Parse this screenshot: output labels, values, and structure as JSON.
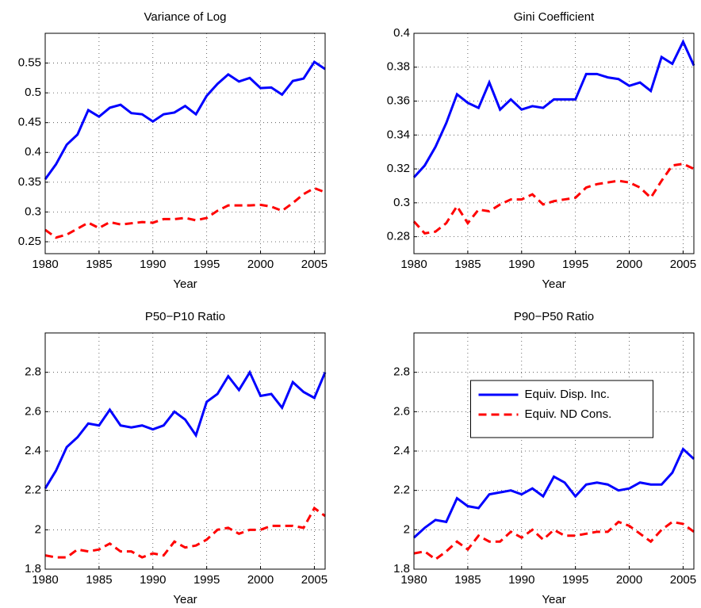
{
  "chart_data": [
    {
      "type": "line",
      "title": "Variance of Log",
      "xlabel": "Year",
      "x": [
        1980,
        1981,
        1982,
        1983,
        1984,
        1985,
        1986,
        1987,
        1988,
        1989,
        1990,
        1991,
        1992,
        1993,
        1994,
        1995,
        1996,
        1997,
        1998,
        1999,
        2000,
        2001,
        2002,
        2003,
        2004,
        2005,
        2006
      ],
      "series": [
        {
          "color": "#0000ff",
          "dash": false,
          "values": [
            0.355,
            0.38,
            0.413,
            0.43,
            0.471,
            0.46,
            0.475,
            0.48,
            0.466,
            0.464,
            0.452,
            0.464,
            0.467,
            0.478,
            0.464,
            0.495,
            0.515,
            0.531,
            0.519,
            0.525,
            0.508,
            0.509,
            0.497,
            0.52,
            0.524,
            0.552,
            0.54
          ]
        },
        {
          "color": "#ff0000",
          "dash": true,
          "values": [
            0.27,
            0.257,
            0.262,
            0.272,
            0.282,
            0.273,
            0.283,
            0.279,
            0.281,
            0.283,
            0.282,
            0.288,
            0.288,
            0.29,
            0.286,
            0.29,
            0.302,
            0.311,
            0.311,
            0.311,
            0.312,
            0.309,
            0.302,
            0.315,
            0.33,
            0.34,
            0.333
          ]
        }
      ],
      "xlim": [
        1980,
        2006
      ],
      "ylim": [
        0.23,
        0.6
      ],
      "xticks": [
        1980,
        1985,
        1990,
        1995,
        2000,
        2005
      ],
      "yticks": [
        0.25,
        0.3,
        0.35,
        0.4,
        0.45,
        0.5,
        0.55
      ],
      "grid": true
    },
    {
      "type": "line",
      "title": "Gini Coefficient",
      "xlabel": "Year",
      "x": [
        1980,
        1981,
        1982,
        1983,
        1984,
        1985,
        1986,
        1987,
        1988,
        1989,
        1990,
        1991,
        1992,
        1993,
        1994,
        1995,
        1996,
        1997,
        1998,
        1999,
        2000,
        2001,
        2002,
        2003,
        2004,
        2005,
        2006
      ],
      "series": [
        {
          "color": "#0000ff",
          "dash": false,
          "values": [
            0.315,
            0.322,
            0.333,
            0.347,
            0.364,
            0.359,
            0.356,
            0.371,
            0.355,
            0.361,
            0.355,
            0.357,
            0.356,
            0.361,
            0.361,
            0.361,
            0.376,
            0.376,
            0.374,
            0.373,
            0.369,
            0.371,
            0.366,
            0.386,
            0.382,
            0.395,
            0.381
          ]
        },
        {
          "color": "#ff0000",
          "dash": true,
          "values": [
            0.289,
            0.282,
            0.283,
            0.288,
            0.298,
            0.288,
            0.296,
            0.295,
            0.299,
            0.302,
            0.302,
            0.305,
            0.299,
            0.301,
            0.302,
            0.303,
            0.309,
            0.311,
            0.312,
            0.313,
            0.312,
            0.309,
            0.303,
            0.313,
            0.322,
            0.323,
            0.32
          ]
        }
      ],
      "xlim": [
        1980,
        2006
      ],
      "ylim": [
        0.27,
        0.4
      ],
      "xticks": [
        1980,
        1985,
        1990,
        1995,
        2000,
        2005
      ],
      "yticks": [
        0.28,
        0.3,
        0.32,
        0.34,
        0.36,
        0.38,
        0.4
      ],
      "grid": true
    },
    {
      "type": "line",
      "title": "P50−P10 Ratio",
      "xlabel": "Year",
      "x": [
        1980,
        1981,
        1982,
        1983,
        1984,
        1985,
        1986,
        1987,
        1988,
        1989,
        1990,
        1991,
        1992,
        1993,
        1994,
        1995,
        1996,
        1997,
        1998,
        1999,
        2000,
        2001,
        2002,
        2003,
        2004,
        2005,
        2006
      ],
      "series": [
        {
          "color": "#0000ff",
          "dash": false,
          "values": [
            2.21,
            2.3,
            2.42,
            2.47,
            2.54,
            2.53,
            2.61,
            2.53,
            2.52,
            2.53,
            2.51,
            2.53,
            2.6,
            2.56,
            2.48,
            2.65,
            2.69,
            2.78,
            2.71,
            2.8,
            2.68,
            2.69,
            2.62,
            2.75,
            2.7,
            2.67,
            2.8
          ]
        },
        {
          "color": "#ff0000",
          "dash": true,
          "values": [
            1.87,
            1.86,
            1.86,
            1.9,
            1.89,
            1.9,
            1.93,
            1.89,
            1.89,
            1.86,
            1.88,
            1.87,
            1.94,
            1.91,
            1.92,
            1.95,
            2.0,
            2.01,
            1.98,
            2.0,
            2.0,
            2.02,
            2.02,
            2.02,
            2.01,
            2.11,
            2.07
          ]
        }
      ],
      "xlim": [
        1980,
        2006
      ],
      "ylim": [
        1.8,
        3.0
      ],
      "xticks": [
        1980,
        1985,
        1990,
        1995,
        2000,
        2005
      ],
      "yticks": [
        1.8,
        2,
        2.2,
        2.4,
        2.6,
        2.8
      ],
      "grid": true
    },
    {
      "type": "line",
      "title": "P90−P50 Ratio",
      "xlabel": "Year",
      "x": [
        1980,
        1981,
        1982,
        1983,
        1984,
        1985,
        1986,
        1987,
        1988,
        1989,
        1990,
        1991,
        1992,
        1993,
        1994,
        1995,
        1996,
        1997,
        1998,
        1999,
        2000,
        2001,
        2002,
        2003,
        2004,
        2005,
        2006
      ],
      "series": [
        {
          "name": "Equiv. Disp. Inc.",
          "color": "#0000ff",
          "dash": false,
          "values": [
            1.96,
            2.01,
            2.05,
            2.04,
            2.16,
            2.12,
            2.11,
            2.18,
            2.19,
            2.2,
            2.18,
            2.21,
            2.17,
            2.27,
            2.24,
            2.17,
            2.23,
            2.24,
            2.23,
            2.2,
            2.21,
            2.24,
            2.23,
            2.23,
            2.29,
            2.41,
            2.36
          ]
        },
        {
          "name": "Equiv. ND Cons.",
          "color": "#ff0000",
          "dash": true,
          "values": [
            1.88,
            1.89,
            1.85,
            1.89,
            1.94,
            1.9,
            1.97,
            1.94,
            1.94,
            1.99,
            1.96,
            2.0,
            1.95,
            2.0,
            1.97,
            1.97,
            1.98,
            1.99,
            1.99,
            2.04,
            2.02,
            1.98,
            1.94,
            2.0,
            2.04,
            2.03,
            1.99
          ]
        }
      ],
      "xlim": [
        1980,
        2006
      ],
      "ylim": [
        1.8,
        3.0
      ],
      "xticks": [
        1980,
        1985,
        1990,
        1995,
        2000,
        2005
      ],
      "yticks": [
        1.8,
        2,
        2.2,
        2.4,
        2.6,
        2.8
      ],
      "grid": true,
      "legend": "upper center"
    }
  ]
}
